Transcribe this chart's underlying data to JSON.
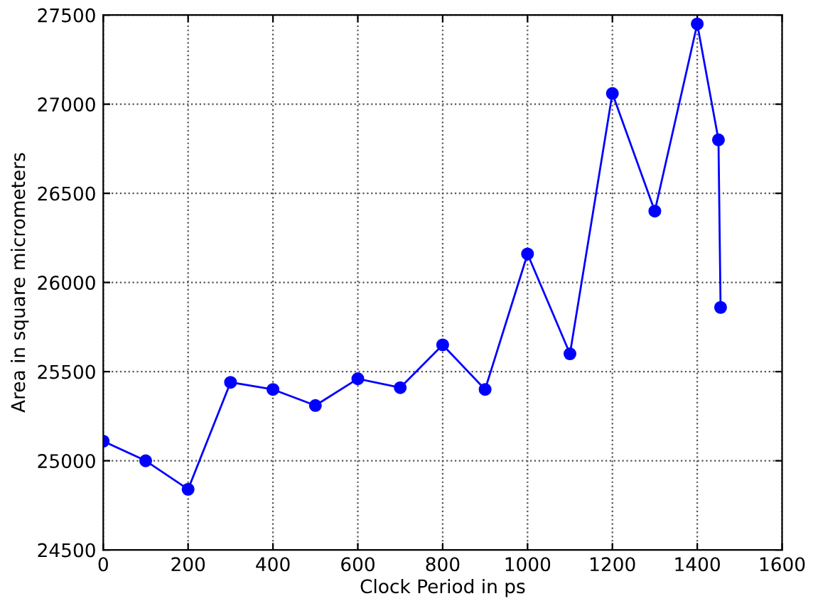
{
  "chart_data": {
    "type": "line",
    "xlabel": "Clock Period in ps",
    "ylabel": "Area in square micrometers",
    "x": [
      0,
      100,
      200,
      300,
      400,
      500,
      600,
      700,
      800,
      900,
      1000,
      1100,
      1200,
      1300,
      1400,
      1450,
      1455
    ],
    "series": [
      {
        "color": "#0000ff",
        "values": [
          25110,
          25000,
          24840,
          25440,
          25400,
          25310,
          25460,
          25410,
          25650,
          25400,
          26160,
          25600,
          27060,
          26400,
          27450,
          26800,
          25860
        ]
      }
    ],
    "xlim": [
      0,
      1600
    ],
    "xticks": [
      0,
      200,
      400,
      600,
      800,
      1000,
      1200,
      1400,
      1600
    ],
    "ylim": [
      24500,
      27500
    ],
    "yticks": [
      24500,
      25000,
      25500,
      26000,
      26500,
      27000,
      27500
    ],
    "grid": true,
    "marker": "circle",
    "line_style": "solid"
  }
}
